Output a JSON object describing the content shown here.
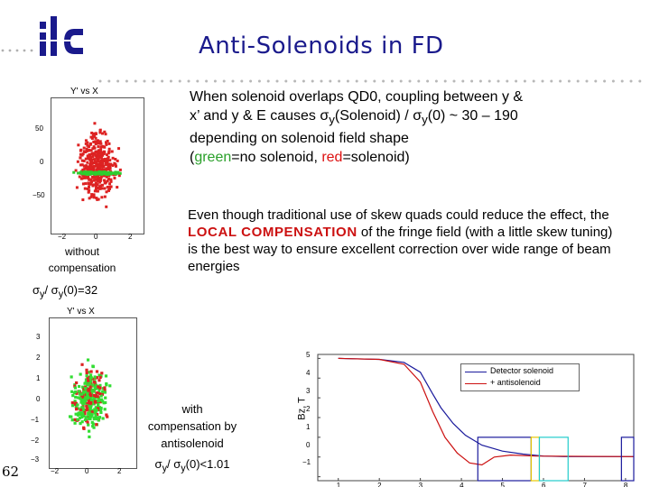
{
  "slide": {
    "title": "Anti-Solenoids in FD",
    "page_number": "62"
  },
  "logo": {
    "text": "ilc",
    "color": "#1a1a8c"
  },
  "plot_top": {
    "title": "Y' vs X",
    "y_ticks": [
      "50",
      "0",
      "−50"
    ],
    "x_ticks": [
      "−2",
      "0",
      "2"
    ]
  },
  "plot_bottom": {
    "title": "Y' vs X",
    "y_ticks": [
      "3",
      "2",
      "1",
      "0",
      "−1",
      "−2",
      "−3"
    ],
    "x_ticks": [
      "−2",
      "0",
      "2"
    ]
  },
  "text_block_1": {
    "line1": "When solenoid overlaps QD0, coupling between y &",
    "line2": "x’ and y & E causes σ",
    "sub1": "y",
    "line2b": "(Solenoid) / σ",
    "sub2": "y",
    "line2c": "(0) ~ 30 – 190",
    "line3": "depending on solenoid field shape",
    "open": "(",
    "green_word": "green",
    "mid": "=no solenoid, ",
    "red_word": "red",
    "close": "=solenoid)"
  },
  "text_block_2": {
    "part1": "Even though traditional use of skew quads could reduce the effect, the ",
    "highlight": "LOCAL COMPENSATION",
    "part2": " of the fringe field (with a little skew tuning) is the best way to ensure excellent correction over wide range of beam energies"
  },
  "caption_without": {
    "line1": "without",
    "line2": "compensation",
    "ratio_a": "σ",
    "ratio_sub1": "y",
    "ratio_b": "/ σ",
    "ratio_sub2": "y",
    "ratio_c": "(0)=32"
  },
  "caption_with": {
    "line1": "with",
    "line2": "compensation by",
    "line3": "antisolenoid",
    "ratio_a": "σ",
    "ratio_sub1": "y",
    "ratio_b": "/ σ",
    "ratio_sub2": "y",
    "ratio_c": "(0)<1.01"
  },
  "field_plot": {
    "ylabel": "Bz, T",
    "y_ticks": [
      "5",
      "4",
      "3",
      "2",
      "1",
      "0",
      "−1"
    ],
    "x_ticks": [
      "1",
      "2",
      "3",
      "4",
      "5",
      "6",
      "7",
      "8"
    ],
    "legend": [
      "Detector solenoid",
      "+ antisolenoid"
    ],
    "colors": {
      "detector": "#1a1a9c",
      "anti": "#cc1111"
    }
  }
}
